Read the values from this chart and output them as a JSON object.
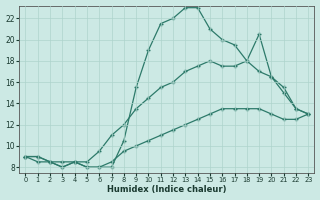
{
  "xlabel": "Humidex (Indice chaleur)",
  "background_color": "#cce9e4",
  "grid_color": "#aed4cc",
  "line_color": "#2d7a6a",
  "xlim": [
    -0.5,
    23.5
  ],
  "ylim": [
    7.5,
    23.2
  ],
  "yticks": [
    8,
    10,
    12,
    14,
    16,
    18,
    20,
    22
  ],
  "xticks": [
    0,
    1,
    2,
    3,
    4,
    5,
    6,
    7,
    8,
    9,
    10,
    11,
    12,
    13,
    14,
    15,
    16,
    17,
    18,
    19,
    20,
    21,
    22,
    23
  ],
  "line1_x": [
    0,
    1,
    2,
    3,
    4,
    5,
    6,
    7,
    8,
    9,
    10,
    11,
    12,
    13,
    14,
    15,
    16,
    17,
    18,
    19,
    20,
    21,
    22,
    23
  ],
  "line1_y": [
    9.0,
    9.0,
    8.5,
    8.0,
    8.5,
    8.0,
    8.0,
    8.0,
    10.5,
    15.5,
    19.0,
    21.5,
    22.0,
    23.0,
    23.0,
    21.0,
    20.0,
    19.5,
    18.0,
    20.5,
    16.5,
    15.0,
    13.5,
    13.0
  ],
  "line2_x": [
    0,
    1,
    2,
    3,
    4,
    5,
    6,
    7,
    8,
    9,
    10,
    11,
    12,
    13,
    14,
    15,
    16,
    17,
    18,
    19,
    20,
    21,
    22,
    23
  ],
  "line2_y": [
    9.0,
    9.0,
    8.5,
    8.5,
    8.5,
    8.5,
    9.5,
    11.0,
    12.0,
    13.5,
    14.5,
    15.5,
    16.0,
    17.0,
    17.5,
    18.0,
    17.5,
    17.5,
    18.0,
    17.0,
    16.5,
    15.5,
    13.5,
    13.0
  ],
  "line3_x": [
    0,
    1,
    2,
    3,
    4,
    5,
    6,
    7,
    8,
    9,
    10,
    11,
    12,
    13,
    14,
    15,
    16,
    17,
    18,
    19,
    20,
    21,
    22,
    23
  ],
  "line3_y": [
    9.0,
    8.5,
    8.5,
    8.0,
    8.5,
    8.0,
    8.0,
    8.5,
    9.5,
    10.0,
    10.5,
    11.0,
    11.5,
    12.0,
    12.5,
    13.0,
    13.5,
    13.5,
    13.5,
    13.5,
    13.0,
    12.5,
    12.5,
    13.0
  ]
}
